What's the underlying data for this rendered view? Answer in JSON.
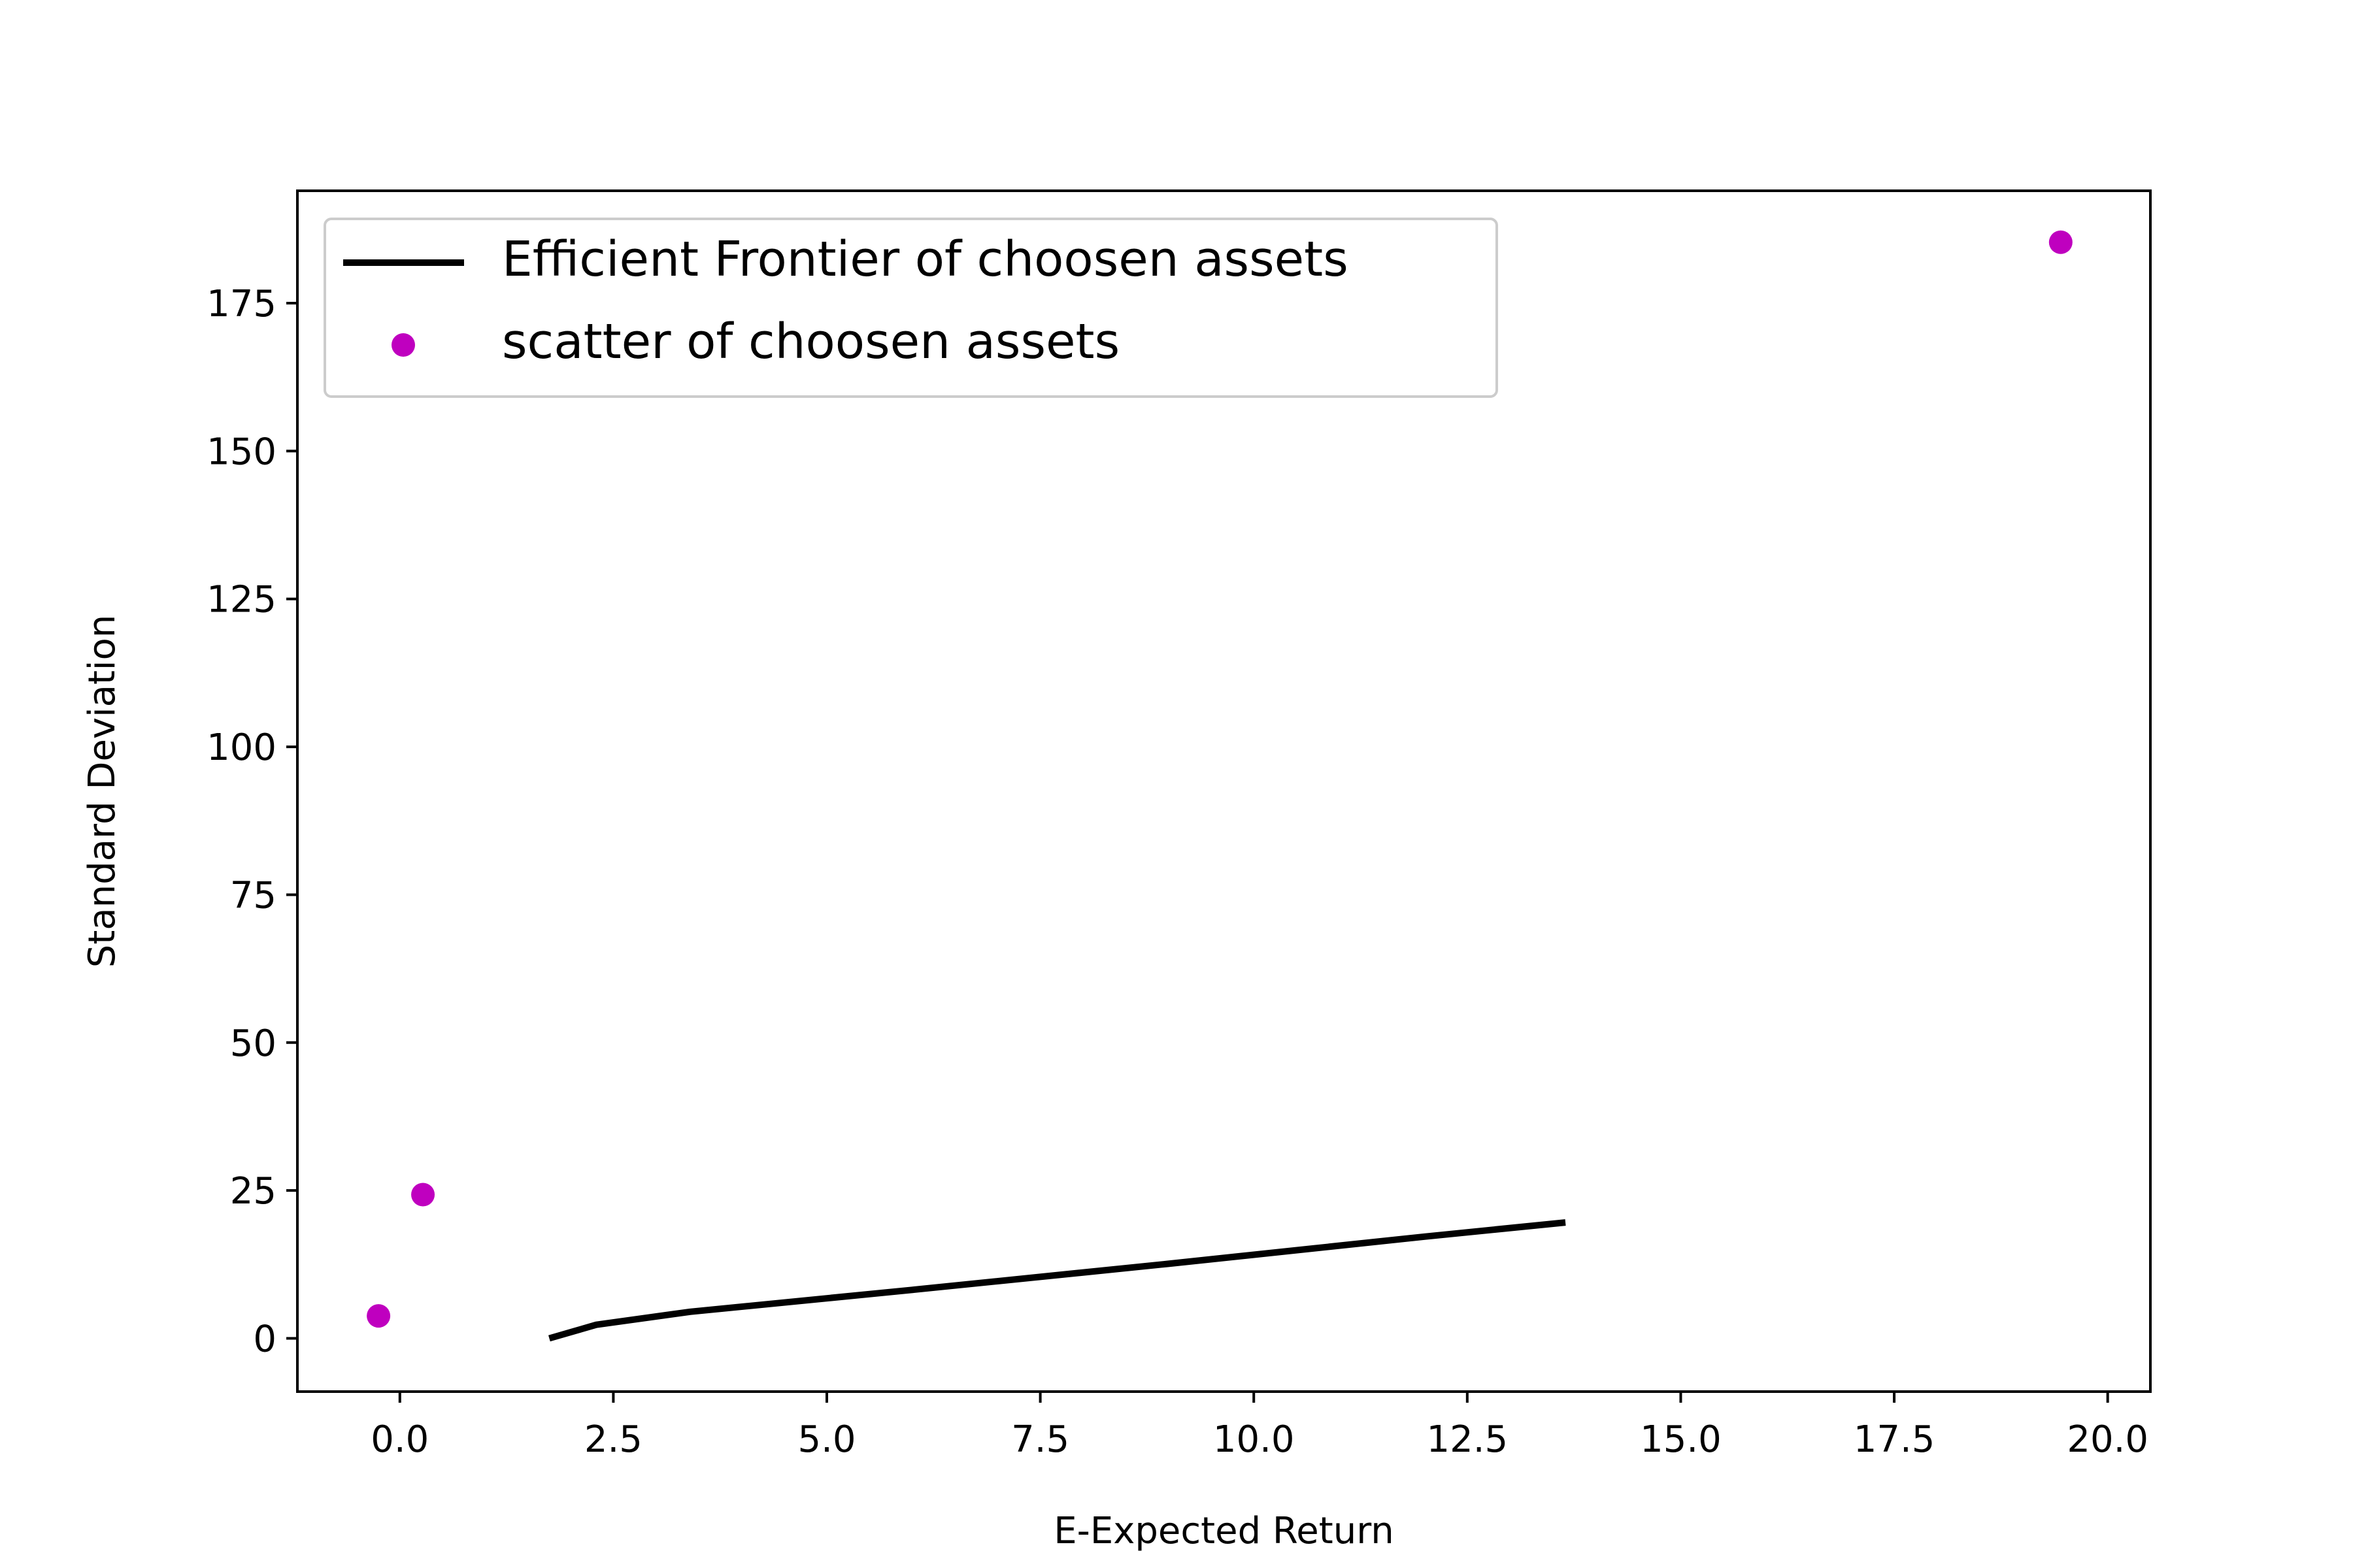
{
  "chart_data": {
    "type": "scatter",
    "title": "",
    "xlabel": "E-Expected Return",
    "ylabel": "Standard Deviation",
    "xlim": [
      -1.2,
      20.5
    ],
    "ylim": [
      -9,
      194
    ],
    "xticks": [
      0.0,
      2.5,
      5.0,
      7.5,
      10.0,
      12.5,
      15.0,
      17.5,
      20.0
    ],
    "xtick_labels": [
      "0.0",
      "2.5",
      "5.0",
      "7.5",
      "10.0",
      "12.5",
      "15.0",
      "17.5",
      "20.0"
    ],
    "yticks": [
      0,
      25,
      50,
      75,
      100,
      125,
      150,
      175
    ],
    "ytick_labels": [
      "0",
      "25",
      "50",
      "75",
      "100",
      "125",
      "150",
      "175"
    ],
    "grid": false,
    "legend_position": "top-left",
    "series": [
      {
        "name": "Efficient Frontier of choosen assets",
        "kind": "line",
        "color": "#000000",
        "x": [
          1.75,
          2.3,
          3.4,
          6.0,
          9.0,
          12.0,
          13.65
        ],
        "y": [
          0.0,
          2.3,
          4.5,
          8.2,
          12.6,
          17.2,
          19.6
        ]
      },
      {
        "name": "scatter of choosen assets",
        "kind": "scatter",
        "color": "#bf00bf",
        "x": [
          -0.25,
          0.27,
          19.45
        ],
        "y": [
          3.8,
          24.3,
          185.3
        ]
      }
    ]
  }
}
